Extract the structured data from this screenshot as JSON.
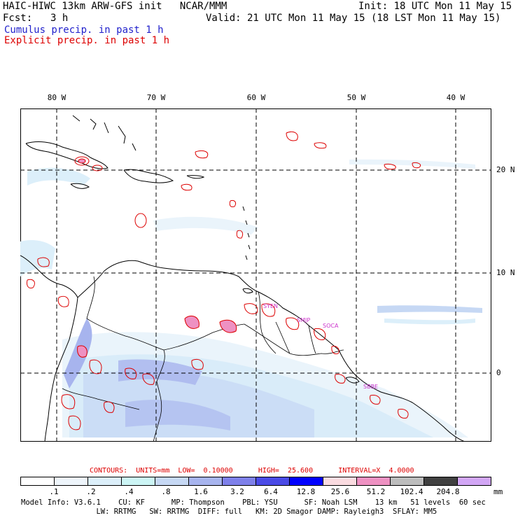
{
  "header": {
    "model_line": "HAIC-HIWC 13km ARW-GFS init   NCAR/MMM",
    "init_line": "Init: 18 UTC Mon 11 May 15",
    "fcst_label": "Fcst:",
    "fcst_value": "3 h",
    "valid_line": "Valid: 21 UTC Mon 11 May 15 (18 LST Mon 11 May 15)",
    "cumulus_label": "Cumulus precip. in past 1 h",
    "explicit_label": "Explicit precip. in past 1 h"
  },
  "map": {
    "longitude_labels": [
      "80 W",
      "70 W",
      "60 W",
      "50 W",
      "40 W"
    ],
    "latitude_labels": [
      "20 N",
      "10 N",
      "0"
    ],
    "station_labels": [
      "SYEN",
      "SMJP",
      "SOCA",
      "SBBE"
    ]
  },
  "contours": {
    "text": "CONTOURS:  UNITS=mm  LOW=  0.10000      HIGH=  25.600      INTERVAL=X  4.0000"
  },
  "colorbar": {
    "tick_labels": [
      ".1",
      ".2",
      ".4",
      ".8",
      "1.6",
      "3.2",
      "6.4",
      "12.8",
      "25.6",
      "51.2",
      "102.4",
      "204.8"
    ],
    "unit": "mm",
    "colors": [
      "#ffffff",
      "#eef5fb",
      "#dceffa",
      "#ccf5f5",
      "#c6d8f4",
      "#a7b4ee",
      "#7e80ea",
      "#4a4ae6",
      "#0000ff",
      "#fadbe0",
      "#ee91c2",
      "#bdbdbd",
      "#404040",
      "#d2a6f5"
    ]
  },
  "model_info": {
    "line1": "Model Info: V3.6.1    CU: KF      MP: Thompson    PBL: YSU      SF: Noah LSM    13 km   51 levels  60 sec",
    "line2": "                 LW: RRTMG   SW: RRTMG  DIFF: full   KM: 2D Smagor DAMP: Rayleigh3  SFLAY: MM5"
  }
}
